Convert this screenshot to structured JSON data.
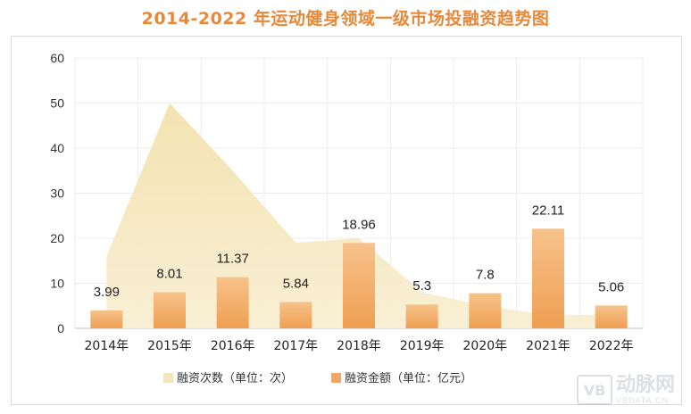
{
  "chart_data": {
    "type": "bar",
    "title": "2014-2022 年运动健身领域一级市场投融资趋势图",
    "categories": [
      "2014年",
      "2015年",
      "2016年",
      "2017年",
      "2018年",
      "2019年",
      "2020年",
      "2021年",
      "2022年"
    ],
    "series": [
      {
        "name": "融资次数（单位：次）",
        "type": "area",
        "values": [
          16,
          50,
          35,
          19,
          20,
          8,
          5,
          3,
          3
        ],
        "color": "#f5e6b8"
      },
      {
        "name": "融资金额（单位：亿元）",
        "type": "bar",
        "values": [
          3.99,
          8.01,
          11.37,
          5.84,
          18.96,
          5.3,
          7.8,
          22.11,
          5.06
        ],
        "labels": [
          "3.99",
          "8.01",
          "11.37",
          "5.84",
          "18.96",
          "5.3",
          "7.8",
          "22.11",
          "5.06"
        ],
        "color": "#f2a661"
      }
    ],
    "ylim": [
      0,
      60
    ],
    "yticks": [
      0,
      10,
      20,
      30,
      40,
      50,
      60
    ],
    "grid": true,
    "legend": "bottom"
  },
  "watermark": {
    "brand": "动脉网",
    "site": "VBDATA.CN",
    "logo": "VB"
  }
}
